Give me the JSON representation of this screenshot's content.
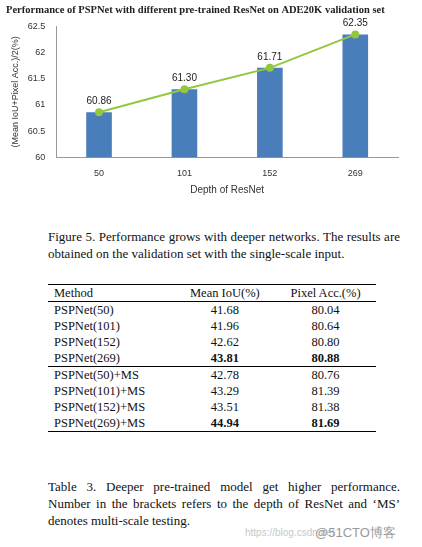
{
  "chart_data": {
    "type": "bar",
    "title": "Performance of PSPNet with different pre-trained ResNet on ADE20K validation set",
    "x_label": "Depth of ResNet",
    "y_label": "(Mean IoU+Pixel Acc.)/2(%)",
    "categories": [
      "50",
      "101",
      "152",
      "269"
    ],
    "series": [
      {
        "type": "bar",
        "color": "#4a7ebb",
        "values": [
          60.86,
          61.3,
          61.71,
          62.35
        ]
      },
      {
        "type": "line",
        "color": "#92c83e",
        "marker": "circle",
        "line_style": "solid",
        "values": [
          60.86,
          61.3,
          61.71,
          62.35
        ],
        "data_labels": true,
        "value_labels": [
          "60.86",
          "61.30",
          "61.71",
          "62.35"
        ]
      }
    ],
    "ylim": [
      60,
      62.5
    ],
    "yticks": [
      60,
      60.5,
      61,
      61.5,
      62,
      62.5
    ],
    "grid": false
  },
  "figure_caption": "Figure 5. Performance grows with deeper networks. The results are obtained on the validation set with the single-scale input.",
  "table": {
    "header": [
      "Method",
      "Mean IoU(%)",
      "Pixel Acc.(%)"
    ],
    "groups": [
      [
        [
          "PSPNet(50)",
          "41.68",
          "80.04"
        ],
        [
          "PSPNet(101)",
          "41.96",
          "80.64"
        ],
        [
          "PSPNet(152)",
          "42.62",
          "80.80"
        ],
        [
          "PSPNet(269)",
          "43.81",
          "80.88"
        ]
      ],
      [
        [
          "PSPNet(50)+MS",
          "42.78",
          "80.76"
        ],
        [
          "PSPNet(101)+MS",
          "43.29",
          "81.39"
        ],
        [
          "PSPNet(152)+MS",
          "43.51",
          "81.38"
        ],
        [
          "PSPNet(269)+MS",
          "44.94",
          "81.69"
        ]
      ]
    ]
  },
  "table_caption": "Table 3. Deeper pre-trained model get higher performance. Number in the brackets refers to the depth of ResNet and ‘MS’ denotes multi-scale testing.",
  "watermark": [
    "https://blog.csdn.net",
    "@51CTO博客"
  ]
}
